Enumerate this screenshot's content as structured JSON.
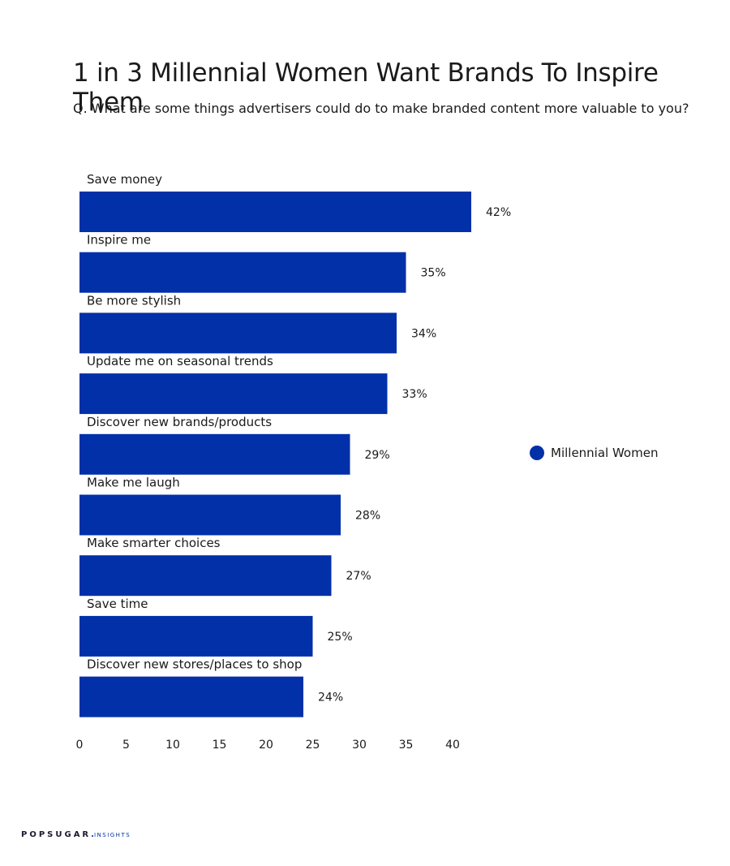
{
  "header": {
    "title": "1 in 3 Millennial Women Want Brands To Inspire Them",
    "subtitle": "Q. What are some things advertisers could do to make branded content more valuable to you?"
  },
  "legend": {
    "label": "Millennial Women"
  },
  "footer": {
    "brand": "POPSUGAR",
    "brand_dot": ".",
    "brand_sub": "INSIGHTS"
  },
  "colors": {
    "bar": "#0230a8",
    "text": "#1a1a1a"
  },
  "chart_data": {
    "type": "bar",
    "orientation": "horizontal",
    "categories": [
      "Save money",
      "Inspire me",
      "Be more stylish",
      "Update me on seasonal trends",
      "Discover new brands/products",
      "Make me laugh",
      "Make smarter choices",
      "Save time",
      "Discover new stores/places to shop"
    ],
    "series": [
      {
        "name": "Millennial Women",
        "values": [
          42,
          35,
          34,
          33,
          29,
          28,
          27,
          25,
          24
        ]
      }
    ],
    "data_labels": [
      "42%",
      "35%",
      "34%",
      "33%",
      "29%",
      "28%",
      "27%",
      "25%",
      "24%"
    ],
    "xticks": [
      0,
      5,
      10,
      15,
      20,
      25,
      30,
      35,
      40
    ],
    "xlim": [
      0,
      42
    ],
    "grid": false,
    "legend_position": "right"
  }
}
